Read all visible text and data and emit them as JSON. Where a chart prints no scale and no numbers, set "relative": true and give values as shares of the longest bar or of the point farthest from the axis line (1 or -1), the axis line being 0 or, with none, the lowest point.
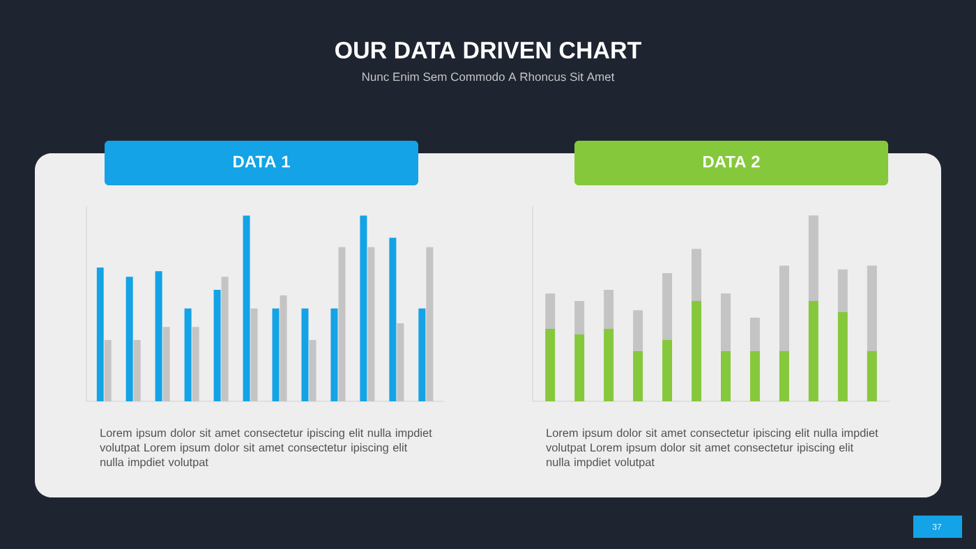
{
  "chart_data": [
    {
      "type": "bar",
      "title": "DATA 1",
      "relative": true,
      "categories": [
        null,
        null,
        null,
        null,
        null,
        null,
        null,
        null,
        null,
        null,
        null,
        null
      ],
      "series": [
        {
          "color": "#13a3e6",
          "values": [
            0.72,
            0.67,
            0.7,
            0.5,
            0.6,
            1,
            0.5,
            0.5,
            0.5,
            1,
            0.88,
            0.5
          ]
        },
        {
          "color": "#c4c4c4",
          "values": [
            0.33,
            0.33,
            0.4,
            0.4,
            0.67,
            0.5,
            0.57,
            0.33,
            0.83,
            0.83,
            0.42,
            0.83
          ]
        }
      ],
      "annotations": [
        "Lorem ipsum dolor sit amet consectetur ipiscing elit nulla impdiet volutpat Lorem ipsum dolor sit amet consectetur ipiscing elit nulla impdiet volutpat"
      ]
    },
    {
      "type": "bar",
      "title": "DATA 2",
      "relative": true,
      "stacked": true,
      "categories": [
        null,
        null,
        null,
        null,
        null,
        null,
        null,
        null,
        null,
        null,
        null,
        null
      ],
      "series": [
        {
          "color": "#86c83c",
          "values": [
            0.39,
            0.36,
            0.39,
            0.27,
            0.33,
            0.54,
            0.27,
            0.27,
            0.27,
            0.54,
            0.48,
            0.27
          ]
        },
        {
          "color": "#c4c4c4",
          "values": [
            0.19,
            0.18,
            0.21,
            0.22,
            0.36,
            0.28,
            0.31,
            0.18,
            0.46,
            0.46,
            0.23,
            0.46
          ]
        }
      ],
      "annotations": [
        "Lorem ipsum dolor sit amet consectetur ipiscing elit nulla impdiet volutpat Lorem ipsum dolor sit amet consectetur ipiscing elit nulla impdiet volutpat"
      ]
    },
    {
      "type": "other",
      "title": "OUR DATA DRIVEN CHART",
      "subtitle": "Nunc Enim Sem Commodo A Rhoncus Sit Amet",
      "annotations": [
        "37"
      ]
    }
  ]
}
